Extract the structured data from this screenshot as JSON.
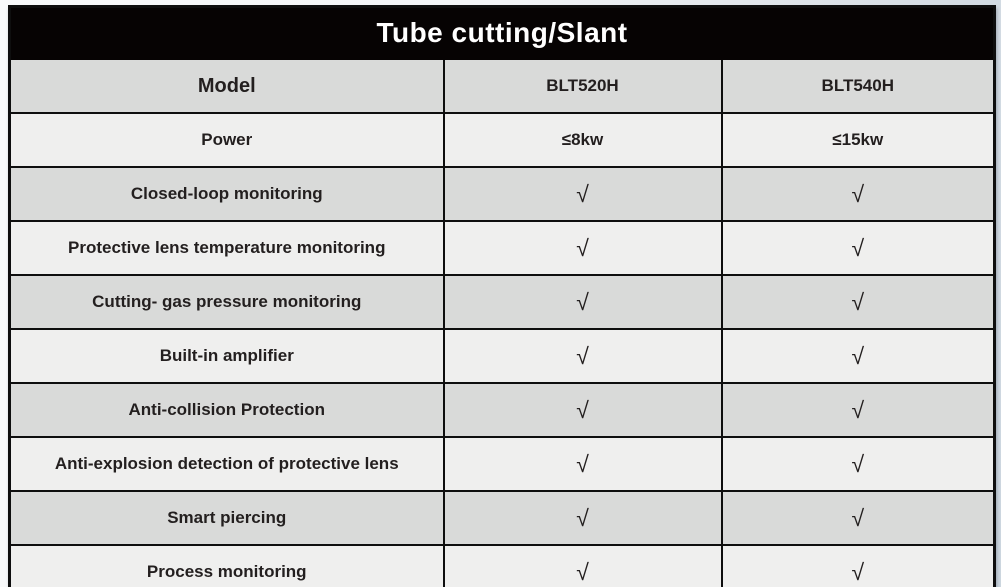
{
  "title_bar": {
    "text": "Tube cutting/Slant",
    "bg_color": "#060303",
    "text_color": "#ffffff"
  },
  "table": {
    "model_row": {
      "label": "Model",
      "values": [
        "BLT520H",
        "BLT540H"
      ]
    },
    "rows": [
      {
        "label": "Power",
        "values": [
          "≤8kw",
          "≤15kw"
        ],
        "type": "text"
      },
      {
        "label": "Closed-loop monitoring",
        "values": [
          "√",
          "√"
        ],
        "type": "check"
      },
      {
        "label": "Protective lens temperature monitoring",
        "values": [
          "√",
          "√"
        ],
        "type": "check"
      },
      {
        "label": "Cutting- gas pressure monitoring",
        "values": [
          "√",
          "√"
        ],
        "type": "check"
      },
      {
        "label": "Built-in amplifier",
        "values": [
          "√",
          "√"
        ],
        "type": "check"
      },
      {
        "label": "Anti-collision Protection",
        "values": [
          "√",
          "√"
        ],
        "type": "check"
      },
      {
        "label": "Anti-explosion detection of protective lens",
        "values": [
          "√",
          "√"
        ],
        "type": "check"
      },
      {
        "label": "Smart piercing",
        "values": [
          "√",
          "√"
        ],
        "type": "check"
      },
      {
        "label": "Process monitoring",
        "values": [
          "√",
          "√"
        ],
        "type": "check"
      }
    ]
  },
  "colors": {
    "row_dark": "#d9dad9",
    "row_light": "#efefee",
    "border": "#0e0e0e",
    "text": "#231f1f",
    "page_bg_left": "#f9fafb",
    "page_bg_right": "#ccd6df"
  }
}
